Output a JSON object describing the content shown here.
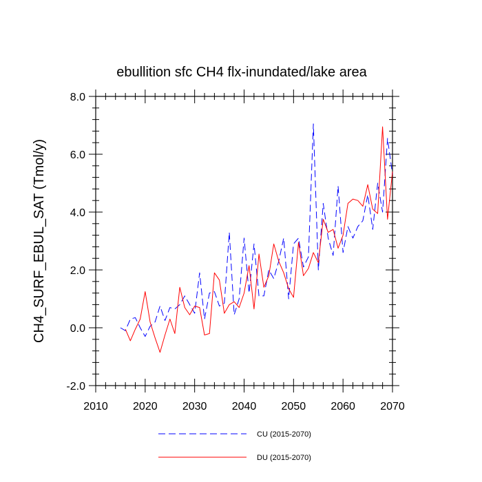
{
  "chart_data": {
    "type": "line",
    "title": "ebullition sfc CH4 flx-inundated/lake area",
    "xlabel": "",
    "ylabel": "CH4_SURF_EBUL_SAT  (Tmol/y)",
    "xlim": [
      2010,
      2070
    ],
    "ylim": [
      -2.0,
      8.0
    ],
    "x_ticks": [
      2010,
      2020,
      2030,
      2040,
      2050,
      2060,
      2070
    ],
    "x_tick_labels": [
      "2010",
      "2020",
      "2030",
      "2040",
      "2050",
      "2060",
      "2070"
    ],
    "y_ticks": [
      -2.0,
      0.0,
      2.0,
      4.0,
      6.0,
      8.0
    ],
    "y_tick_labels": [
      "-2.0",
      "0.0",
      "2.0",
      "4.0",
      "6.0",
      "8.0"
    ],
    "grid": false,
    "legend_position": "bottom",
    "series": [
      {
        "name": "CU (2015-2070)",
        "color": "#0000ff",
        "dash": "dashed",
        "x": [
          2015,
          2016,
          2017,
          2018,
          2019,
          2020,
          2021,
          2022,
          2023,
          2024,
          2025,
          2026,
          2027,
          2028,
          2029,
          2030,
          2031,
          2032,
          2033,
          2034,
          2035,
          2036,
          2037,
          2038,
          2039,
          2040,
          2041,
          2042,
          2043,
          2044,
          2045,
          2046,
          2047,
          2048,
          2049,
          2050,
          2051,
          2052,
          2053,
          2054,
          2055,
          2056,
          2057,
          2058,
          2059,
          2060,
          2061,
          2062,
          2063,
          2064,
          2065,
          2066,
          2067,
          2068,
          2069,
          2070
        ],
        "values": [
          0.0,
          -0.1,
          0.3,
          0.35,
          0.0,
          -0.3,
          0.05,
          0.2,
          0.75,
          0.25,
          0.7,
          0.65,
          0.8,
          1.1,
          0.8,
          0.5,
          1.9,
          0.3,
          1.2,
          1.25,
          0.75,
          0.85,
          3.3,
          0.45,
          1.0,
          3.1,
          1.2,
          2.9,
          1.1,
          1.1,
          2.0,
          1.7,
          2.3,
          3.1,
          1.0,
          2.9,
          3.1,
          2.1,
          2.45,
          7.05,
          2.0,
          4.3,
          3.1,
          2.5,
          4.9,
          2.6,
          3.5,
          3.1,
          3.5,
          3.7,
          4.6,
          3.4,
          5.0,
          4.0,
          6.55,
          5.3
        ]
      },
      {
        "name": "DU (2015-2070)",
        "color": "#ff0000",
        "dash": "solid",
        "x": [
          2016,
          2017,
          2018,
          2019,
          2020,
          2021,
          2022,
          2023,
          2024,
          2025,
          2026,
          2027,
          2028,
          2029,
          2030,
          2031,
          2032,
          2033,
          2034,
          2035,
          2036,
          2037,
          2038,
          2039,
          2040,
          2041,
          2042,
          2043,
          2044,
          2045,
          2046,
          2047,
          2048,
          2049,
          2050,
          2051,
          2052,
          2053,
          2054,
          2055,
          2056,
          2057,
          2058,
          2059,
          2060,
          2061,
          2062,
          2063,
          2064,
          2065,
          2066,
          2067,
          2068,
          2069,
          2070
        ],
        "values": [
          -0.05,
          -0.45,
          -0.05,
          0.3,
          1.25,
          0.2,
          -0.35,
          -0.85,
          -0.25,
          0.3,
          -0.2,
          1.4,
          0.7,
          0.45,
          0.75,
          0.7,
          -0.25,
          -0.2,
          1.9,
          1.65,
          0.5,
          0.8,
          0.9,
          0.7,
          1.2,
          2.15,
          0.65,
          2.55,
          1.4,
          1.8,
          2.9,
          2.3,
          1.9,
          1.35,
          1.05,
          2.95,
          1.8,
          2.05,
          2.6,
          2.25,
          3.75,
          3.3,
          3.4,
          2.75,
          3.2,
          4.3,
          4.45,
          4.4,
          4.2,
          4.95,
          4.1,
          3.95,
          6.95,
          3.75,
          5.4
        ]
      }
    ]
  }
}
